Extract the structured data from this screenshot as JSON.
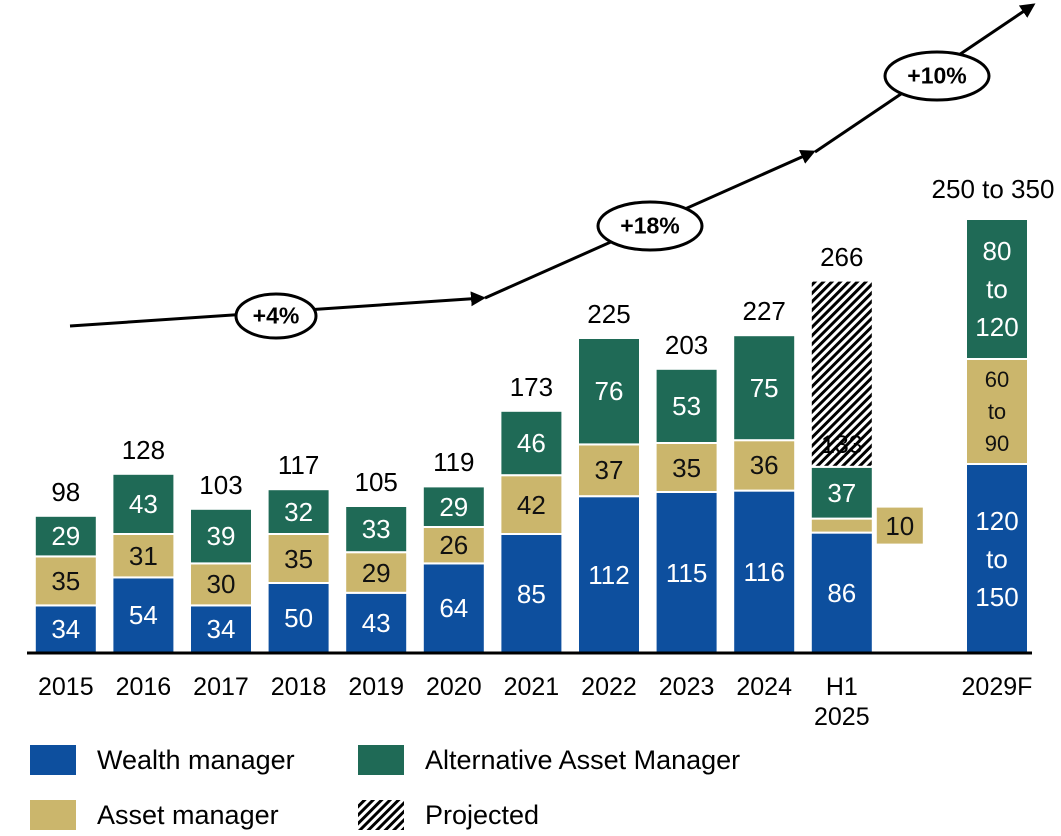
{
  "chart_data": {
    "type": "bar",
    "stacked": true,
    "categories": [
      "2015",
      "2016",
      "2017",
      "2018",
      "2019",
      "2020",
      "2021",
      "2022",
      "2023",
      "2024",
      "H1 2025",
      null,
      "2029F"
    ],
    "series": [
      {
        "name": "Wealth manager",
        "color": "#0d4f9e",
        "text_color": "#ffffff",
        "values": [
          34,
          54,
          34,
          50,
          43,
          64,
          85,
          112,
          115,
          116,
          86,
          null,
          null
        ]
      },
      {
        "name": "Asset manager",
        "color": "#cbb66c",
        "text_color": "#111111",
        "values": [
          35,
          31,
          30,
          35,
          29,
          26,
          42,
          37,
          35,
          36,
          10,
          null,
          null
        ]
      },
      {
        "name": "Alternative Asset Manager",
        "color": "#1f6a56",
        "text_color": "#ffffff",
        "values": [
          29,
          43,
          39,
          32,
          33,
          29,
          46,
          76,
          53,
          75,
          37,
          null,
          null
        ]
      },
      {
        "name": "Projected",
        "color": "#000000",
        "pattern": "hatch",
        "values": [
          null,
          null,
          null,
          null,
          null,
          null,
          null,
          null,
          null,
          null,
          133,
          null,
          null
        ]
      }
    ],
    "totals": [
      98,
      128,
      103,
      117,
      105,
      119,
      173,
      225,
      203,
      227,
      266,
      null,
      null
    ],
    "subtotals": [
      null,
      null,
      null,
      null,
      null,
      null,
      null,
      null,
      null,
      null,
      133,
      null,
      null
    ],
    "forecast": {
      "category": "2029F",
      "segments": [
        {
          "low": 120,
          "high": 150,
          "label": "120 to 150"
        },
        {
          "low": 60,
          "high": 90,
          "label": "60 to 90"
        },
        {
          "low": 80,
          "high": 120,
          "label": "80 to 120"
        }
      ],
      "total": {
        "low": 250,
        "high": 350,
        "label": "250 to 350"
      }
    },
    "annotations": [
      "+4%",
      "+18%",
      "+10%"
    ]
  }
}
